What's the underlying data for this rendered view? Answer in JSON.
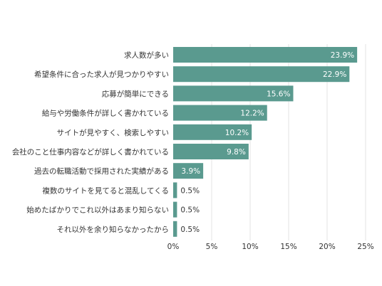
{
  "chart_data": {
    "type": "bar",
    "orientation": "horizontal",
    "categories": [
      "求人数が多い",
      "希望条件に合った求人が見つかりやすい",
      "応募が簡単にできる",
      "給与や労働条件が詳しく書かれている",
      "サイトが見やすく、検索しやすい",
      "会社のこと仕事内容などが詳しく書かれている",
      "過去の転職活動で採用された実績がある",
      "複数のサイトを見てると混乱してくる",
      "始めたばかりでこれ以外はあまり知らない",
      "それ以外を余り知らなかったから"
    ],
    "values": [
      23.9,
      22.9,
      15.6,
      12.2,
      10.2,
      9.8,
      3.9,
      0.5,
      0.5,
      0.5
    ],
    "value_labels": [
      "23.9%",
      "22.9%",
      "15.6%",
      "12.2%",
      "10.2%",
      "9.8%",
      "3.9%",
      "0.5%",
      "0.5%",
      "0.5%"
    ],
    "x_ticks": [
      0,
      5,
      10,
      15,
      20,
      25
    ],
    "x_tick_labels": [
      "0%",
      "5%",
      "10%",
      "15%",
      "20%",
      "25%"
    ],
    "xlim": [
      0,
      25
    ],
    "grid": true,
    "colors": {
      "bar": "#5a9a8f",
      "grid": "#e3e3e3",
      "label_inside": "#ffffff",
      "label_outside": "#333333"
    }
  }
}
